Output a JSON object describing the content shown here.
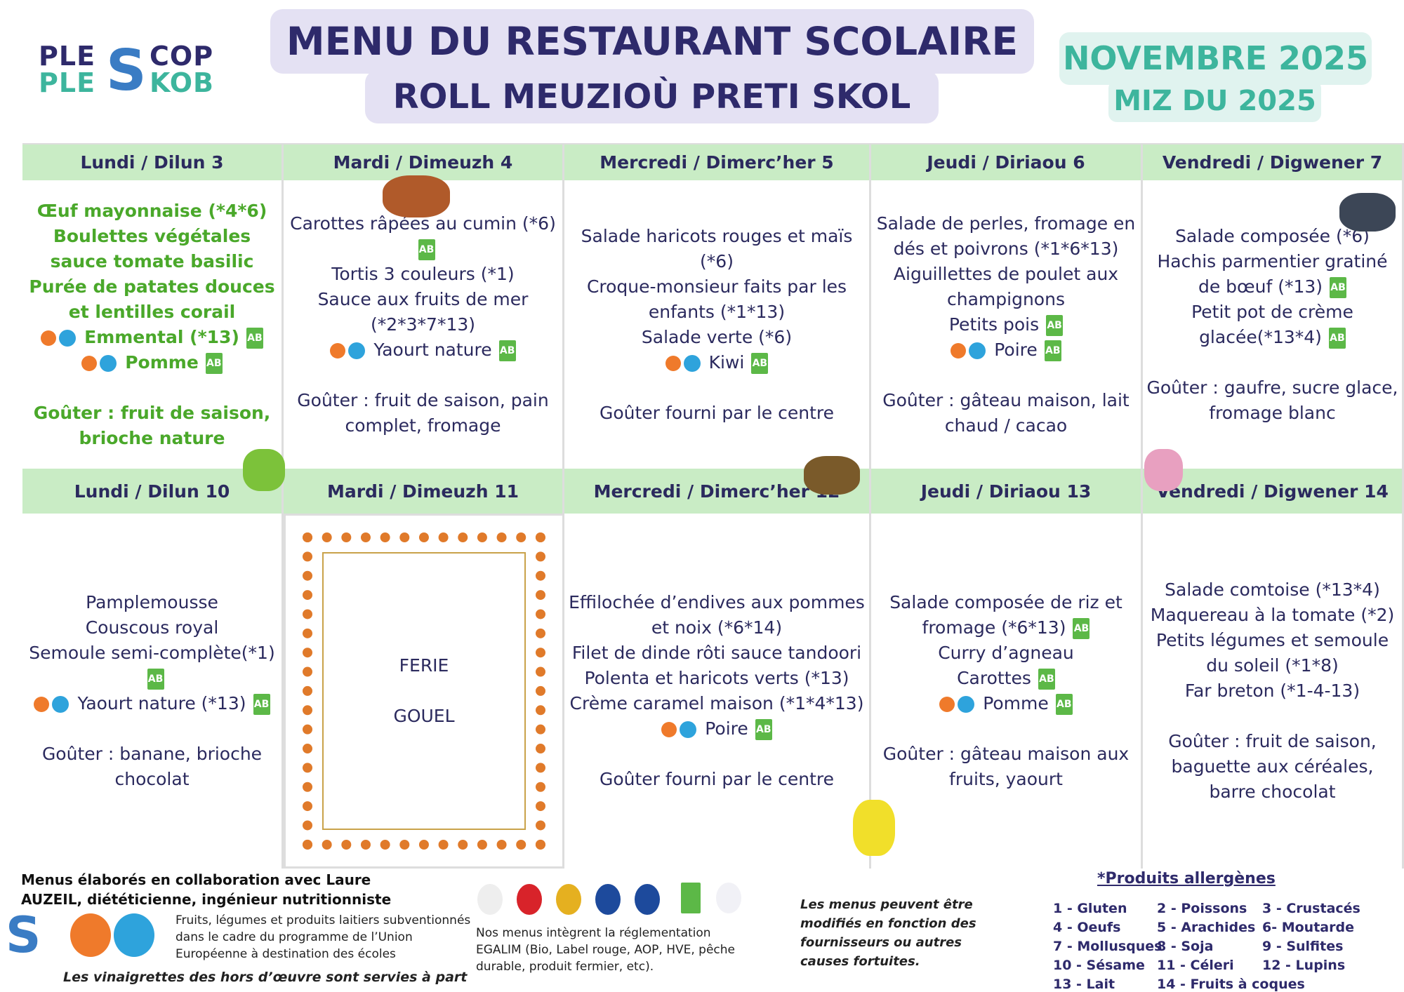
{
  "header": {
    "title_fr": "MENU DU RESTAURANT SCOLAIRE",
    "title_br": "ROLL MEUZIOÙ PRETI SKOL",
    "month_fr": "NOVEMBRE 2025",
    "month_br": "MIZ DU 2025",
    "logo": "PLESCOP PLESKOB",
    "colors": {
      "navy": "#2e2a6b",
      "teal": "#3db59d",
      "green_header": "#c9ecc5"
    }
  },
  "weeks": [
    {
      "days": [
        {
          "label": "Lundi / Dilun 3",
          "style": "green",
          "items": [
            {
              "t": "Œuf mayonnaise (*4*6)"
            },
            {
              "t": "Boulettes végétales sauce tomate basilic"
            },
            {
              "t": "Purée de patates douces et lentilles corail"
            },
            {
              "t": "Emmental (*13)",
              "bio": true,
              "eu": true
            },
            {
              "t": "Pomme",
              "bio": true,
              "eu": true
            },
            {
              "gap": true
            },
            {
              "t": "Goûter : fruit de saison, brioche nature"
            }
          ]
        },
        {
          "label": "Mardi / Dimeuzh 4",
          "items": [
            {
              "t": "Carottes râpées au cumin (*6)",
              "bio": true
            },
            {
              "t": "Tortis 3 couleurs (*1)"
            },
            {
              "t": "Sauce aux fruits de mer (*2*3*7*13)"
            },
            {
              "t": "Yaourt nature",
              "bio": true,
              "eu": true
            },
            {
              "gap": true
            },
            {
              "t": "Goûter : fruit de saison, pain complet, fromage"
            }
          ]
        },
        {
          "label": "Mercredi / Dimerc’her 5",
          "items": [
            {
              "t": "Salade haricots rouges et maïs (*6)"
            },
            {
              "t": "Croque-monsieur faits par les enfants (*1*13)"
            },
            {
              "t": "Salade verte (*6)"
            },
            {
              "t": "Kiwi",
              "bio": true,
              "eu": true
            },
            {
              "gap": true
            },
            {
              "t": "Goûter fourni par le centre"
            }
          ]
        },
        {
          "label": "Jeudi / Diriaou 6",
          "items": [
            {
              "t": "Salade de perles, fromage en dés et poivrons (*1*6*13)"
            },
            {
              "t": "Aiguillettes de poulet aux champignons"
            },
            {
              "t": "Petits pois",
              "bio": true
            },
            {
              "t": "Poire",
              "bio": true,
              "eu": true
            },
            {
              "gap": true
            },
            {
              "t": "Goûter : gâteau maison, lait chaud / cacao"
            }
          ]
        },
        {
          "label": "Vendredi / Digwener 7",
          "items": [
            {
              "t": "Salade composée (*6)"
            },
            {
              "t": "Hachis parmentier gratiné de bœuf (*13)",
              "bio": true
            },
            {
              "t": "Petit pot de crème glacée(*13*4)",
              "bio": true
            },
            {
              "gap": true
            },
            {
              "t": "Goûter : gaufre, sucre glace, fromage blanc"
            }
          ]
        }
      ]
    },
    {
      "days": [
        {
          "label": "Lundi / Dilun 10",
          "items": [
            {
              "t": "Pamplemousse"
            },
            {
              "t": "Couscous royal"
            },
            {
              "t": "Semoule semi-complète(*1)",
              "bio": true
            },
            {
              "t": "Yaourt nature (*13)",
              "bio": true,
              "eu": true
            },
            {
              "gap": true
            },
            {
              "t": "Goûter : banane, brioche chocolat"
            }
          ]
        },
        {
          "label": "Mardi / Dimeuzh 11",
          "holiday": true,
          "items": [
            {
              "t": "FERIE"
            },
            {
              "gap": true
            },
            {
              "t": "GOUEL"
            }
          ]
        },
        {
          "label": "Mercredi / Dimerc’her 12",
          "items": [
            {
              "t": "Effilochée d’endives aux pommes et noix (*6*14)"
            },
            {
              "t": "Filet de dinde rôti sauce tandoori"
            },
            {
              "t": "Polenta et haricots verts (*13)"
            },
            {
              "t": "Crème caramel maison (*1*4*13)"
            },
            {
              "t": "Poire",
              "bio": true,
              "eu": true
            },
            {
              "gap": true
            },
            {
              "t": "Goûter fourni par le centre"
            }
          ]
        },
        {
          "label": "Jeudi / Diriaou 13",
          "items": [
            {
              "t": "Salade composée de riz et fromage (*6*13)",
              "bio": true
            },
            {
              "t": "Curry d’agneau"
            },
            {
              "t": "Carottes",
              "bio": true
            },
            {
              "t": "Pomme",
              "bio": true,
              "eu": true
            },
            {
              "gap": true
            },
            {
              "t": "Goûter : gâteau maison aux fruits, yaourt"
            }
          ]
        },
        {
          "label": "Vendredi / Digwener 14",
          "items": [
            {
              "t": "Salade comtoise (*13*4)"
            },
            {
              "t": "Maquereau à la tomate (*2)"
            },
            {
              "t": "Petits légumes et semoule du soleil (*1*8)"
            },
            {
              "t": "Far breton (*1-4-13)"
            },
            {
              "gap": true
            },
            {
              "t": "Goûter : fruit de saison, baguette aux céréales, barre chocolat"
            }
          ]
        }
      ]
    }
  ],
  "footer": {
    "collab": "Menus élaborés en collaboration avec Laure AUZEIL, diététicienne, ingénieur nutritionniste",
    "eu_program": "Fruits, légumes et produits laitiers subventionnés dans le cadre du programme de l’Union Européenne à destination des écoles",
    "vinaigrette": "Les vinaigrettes des hors d’œuvre sont servies à part",
    "egalim": "Nos menus intègrent la réglementation EGALIM (Bio, Label rouge, AOP, HVE, pêche durable, produit fermier, etc).",
    "disclaimer": "Les menus peuvent être modifiés en fonction des fournisseurs ou autres causes fortuites.",
    "bio_label": "AB",
    "allergens_title": "*Produits allergènes",
    "allergens": [
      "1 - Gluten",
      "2 - Poissons",
      "3 - Crustacés",
      "4 - Oeufs",
      "5 - Arachides",
      "6- Moutarde",
      "7 - Mollusques",
      "8 - Soja",
      "9 - Sulfites",
      "10 - Sésame",
      "11 - Céleri",
      "12 - Lupins",
      "13 - Lait",
      "14 - Fruits à coques"
    ]
  }
}
